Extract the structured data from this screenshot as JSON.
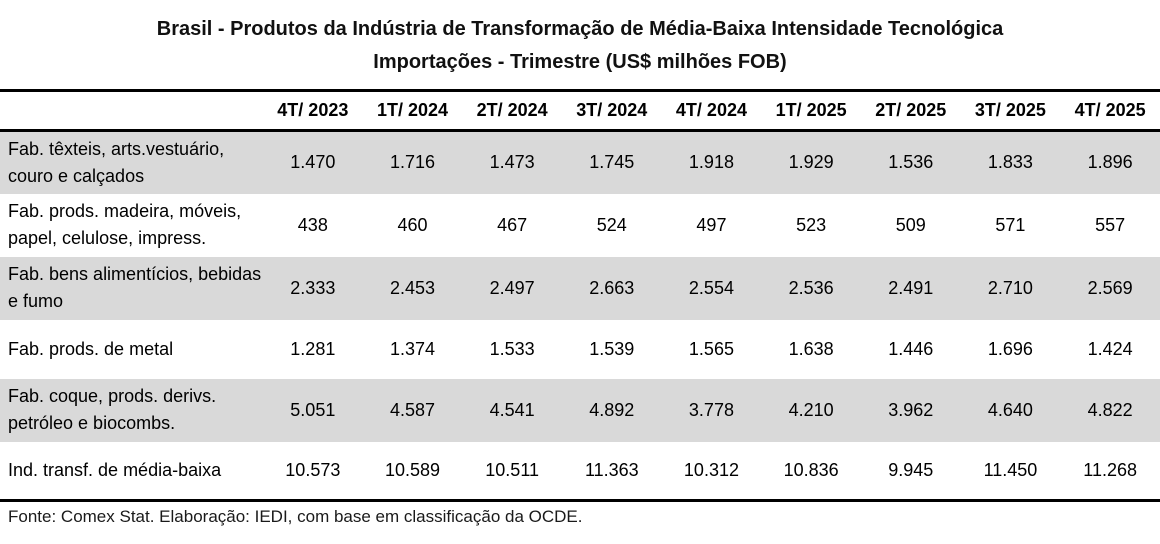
{
  "header": {
    "title": "Brasil - Produtos da Indústria de Transformação de Média-Baixa Intensidade Tecnológica",
    "subtitle": "Importações - Trimestre (US$ milhões FOB)"
  },
  "chart_data": {
    "type": "table",
    "title": "Brasil - Produtos da Indústria de Transformação de Média-Baixa Intensidade Tecnológica",
    "subtitle": "Importações - Trimestre (US$ milhões FOB)",
    "unit": "US$ milhões FOB",
    "columns": [
      "4T/ 2023",
      "1T/ 2024",
      "2T/ 2024",
      "3T/ 2024",
      "4T/ 2024",
      "1T/ 2025",
      "2T/ 2025",
      "3T/ 2025",
      "4T/ 2025"
    ],
    "rows": [
      {
        "label": "Fab. têxteis, arts.vestuário,\ncouro e calçados",
        "values": [
          "1.470",
          "1.716",
          "1.473",
          "1.745",
          "1.918",
          "1.929",
          "1.536",
          "1.833",
          "1.896"
        ],
        "shaded": true
      },
      {
        "label": "Fab. prods. madeira, móveis,\npapel, celulose, impress.",
        "values": [
          "438",
          "460",
          "467",
          "524",
          "497",
          "523",
          "509",
          "571",
          "557"
        ],
        "shaded": false
      },
      {
        "label": "Fab. bens alimentícios, bebidas\ne fumo",
        "values": [
          "2.333",
          "2.453",
          "2.497",
          "2.663",
          "2.554",
          "2.536",
          "2.491",
          "2.710",
          "2.569"
        ],
        "shaded": true
      },
      {
        "label": "Fab. prods. de metal",
        "values": [
          "1.281",
          "1.374",
          "1.533",
          "1.539",
          "1.565",
          "1.638",
          "1.446",
          "1.696",
          "1.424"
        ],
        "shaded": false
      },
      {
        "label": "Fab. coque, prods. derivs.\npetróleo e biocombs.",
        "values": [
          "5.051",
          "4.587",
          "4.541",
          "4.892",
          "3.778",
          "4.210",
          "3.962",
          "4.640",
          "4.822"
        ],
        "shaded": true
      },
      {
        "label": "Ind. transf. de média-baixa",
        "values": [
          "10.573",
          "10.589",
          "10.511",
          "11.363",
          "10.312",
          "10.836",
          "9.945",
          "11.450",
          "11.268"
        ],
        "shaded": false
      }
    ]
  },
  "footer": {
    "source": "Fonte: Comex Stat. Elaboração: IEDI, com base em classificação da OCDE."
  },
  "colors": {
    "row_shade": "#d9d9d9",
    "border": "#000000",
    "text": "#000000",
    "background": "#ffffff"
  }
}
